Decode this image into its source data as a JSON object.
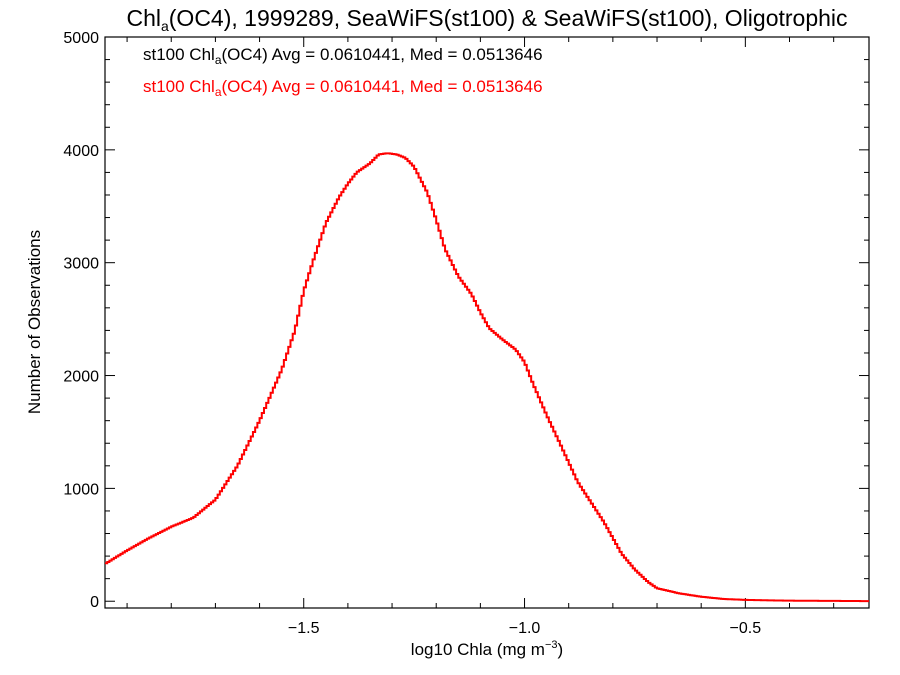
{
  "chart_data": {
    "type": "line",
    "title": {
      "main": "Chl",
      "sub": "a",
      "rest": "(OC4), 1999289, SeaWiFS(st100) & SeaWiFS(st100), Oligotrophic"
    },
    "xlabel": {
      "main": "log10 Chla (mg m",
      "sup": "−3",
      "end": ")"
    },
    "ylabel": "Number of Observations",
    "xlim": [
      -1.95,
      -0.22
    ],
    "ylim": [
      -60,
      5000
    ],
    "x_ticks": [
      {
        "value": -1.5,
        "label": "−1.5"
      },
      {
        "value": -1.0,
        "label": "−1.0"
      },
      {
        "value": -0.5,
        "label": "−0.5"
      }
    ],
    "y_ticks": [
      {
        "value": 0,
        "label": "0"
      },
      {
        "value": 1000,
        "label": "1000"
      },
      {
        "value": 2000,
        "label": "2000"
      },
      {
        "value": 3000,
        "label": "3000"
      },
      {
        "value": 4000,
        "label": "4000"
      },
      {
        "value": 5000,
        "label": "5000"
      }
    ],
    "grid": false,
    "legend_position": "top-left",
    "legend": [
      {
        "prefix": "st100 Chl",
        "sub": "a",
        "suffix": "(OC4) Avg = 0.0610441, Med = 0.0513646",
        "color": "#000000"
      },
      {
        "prefix": "st100 Chl",
        "sub": "a",
        "suffix": "(OC4) Avg = 0.0610441, Med = 0.0513646",
        "color": "#ff0000"
      }
    ],
    "series": [
      {
        "color": "#ff0000",
        "x": [
          -1.95,
          -1.9,
          -1.85,
          -1.8,
          -1.75,
          -1.7,
          -1.65,
          -1.6,
          -1.55,
          -1.52,
          -1.5,
          -1.48,
          -1.45,
          -1.42,
          -1.4,
          -1.38,
          -1.35,
          -1.33,
          -1.31,
          -1.29,
          -1.27,
          -1.25,
          -1.22,
          -1.2,
          -1.18,
          -1.15,
          -1.12,
          -1.1,
          -1.08,
          -1.05,
          -1.02,
          -1.0,
          -0.98,
          -0.95,
          -0.92,
          -0.9,
          -0.88,
          -0.85,
          -0.82,
          -0.8,
          -0.78,
          -0.75,
          -0.72,
          -0.7,
          -0.65,
          -0.6,
          -0.55,
          -0.5,
          -0.45,
          -0.4,
          -0.3,
          -0.22
        ],
        "values": [
          330,
          450,
          560,
          660,
          740,
          900,
          1200,
          1600,
          2050,
          2400,
          2750,
          3000,
          3350,
          3580,
          3700,
          3800,
          3880,
          3960,
          3970,
          3960,
          3930,
          3850,
          3620,
          3380,
          3120,
          2880,
          2720,
          2560,
          2420,
          2320,
          2230,
          2120,
          1920,
          1650,
          1400,
          1230,
          1060,
          880,
          700,
          560,
          420,
          280,
          170,
          115,
          70,
          40,
          20,
          12,
          8,
          5,
          3,
          1
        ]
      }
    ]
  }
}
